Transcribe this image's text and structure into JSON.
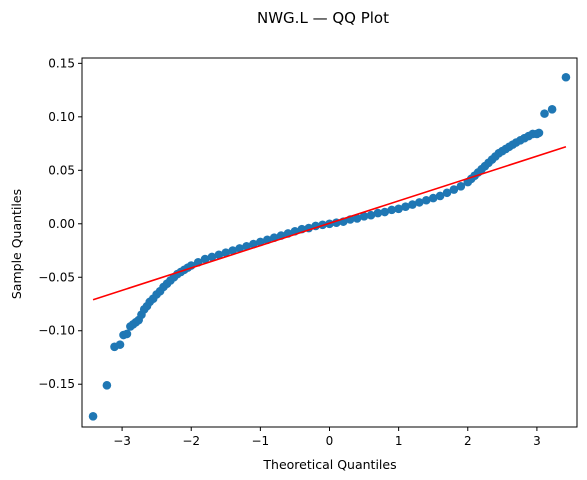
{
  "chart_data": {
    "type": "scatter",
    "title": "NWG.L — QQ Plot",
    "xlabel": "Theoretical Quantiles",
    "ylabel": "Sample Quantiles",
    "xlim": [
      -3.58,
      3.58
    ],
    "ylim": [
      -0.19,
      0.155
    ],
    "x_ticks": [
      -3,
      -2,
      -1,
      0,
      1,
      2,
      3
    ],
    "x_tick_labels": [
      "−3",
      "−2",
      "−1",
      "0",
      "1",
      "2",
      "3"
    ],
    "y_ticks": [
      -0.15,
      -0.1,
      -0.05,
      0.0,
      0.05,
      0.1,
      0.15
    ],
    "y_tick_labels": [
      "−0.15",
      "−0.10",
      "−0.05",
      "0.00",
      "0.05",
      "0.10",
      "0.15"
    ],
    "grid": false,
    "legend": "none",
    "colors": {
      "points": "#1f77b4",
      "reference_line": "#ff0000"
    },
    "reference_line": {
      "x": [
        -3.42,
        3.42
      ],
      "y": [
        -0.071,
        0.072
      ]
    },
    "series": [
      {
        "kind": "points",
        "x": [
          -3.42,
          -3.22,
          -3.11,
          -3.03,
          -2.98,
          -2.93,
          -2.88,
          -2.84,
          -2.8,
          -2.76,
          -2.72,
          -2.68,
          -2.64,
          -2.6,
          -2.55,
          -2.5,
          -2.45,
          -2.4,
          -2.35,
          -2.3,
          -2.25,
          -2.2,
          -2.15,
          -2.1,
          -2.05,
          -2.0,
          -1.9,
          -1.8,
          -1.7,
          -1.6,
          -1.5,
          -1.4,
          -1.3,
          -1.2,
          -1.1,
          -1.0,
          -0.9,
          -0.8,
          -0.7,
          -0.6,
          -0.5,
          -0.4,
          -0.3,
          -0.2,
          -0.1,
          0.0,
          0.1,
          0.2,
          0.3,
          0.4,
          0.5,
          0.6,
          0.7,
          0.8,
          0.9,
          1.0,
          1.1,
          1.2,
          1.3,
          1.4,
          1.5,
          1.6,
          1.7,
          1.8,
          1.9,
          2.0,
          2.05,
          2.1,
          2.15,
          2.2,
          2.25,
          2.3,
          2.35,
          2.4,
          2.45,
          2.5,
          2.55,
          2.6,
          2.65,
          2.7,
          2.76,
          2.82,
          2.88,
          2.94,
          3.0,
          3.03,
          3.11,
          3.22,
          3.42
        ],
        "y": [
          -0.18,
          -0.151,
          -0.115,
          -0.113,
          -0.104,
          -0.103,
          -0.096,
          -0.094,
          -0.092,
          -0.09,
          -0.085,
          -0.08,
          -0.077,
          -0.073,
          -0.07,
          -0.066,
          -0.063,
          -0.059,
          -0.056,
          -0.053,
          -0.05,
          -0.047,
          -0.045,
          -0.043,
          -0.041,
          -0.039,
          -0.036,
          -0.033,
          -0.031,
          -0.029,
          -0.027,
          -0.025,
          -0.023,
          -0.021,
          -0.019,
          -0.017,
          -0.015,
          -0.013,
          -0.011,
          -0.009,
          -0.007,
          -0.005,
          -0.004,
          -0.002,
          -0.001,
          0.0,
          0.001,
          0.002,
          0.004,
          0.005,
          0.007,
          0.008,
          0.01,
          0.011,
          0.013,
          0.014,
          0.016,
          0.018,
          0.02,
          0.022,
          0.024,
          0.026,
          0.029,
          0.032,
          0.035,
          0.039,
          0.042,
          0.045,
          0.048,
          0.051,
          0.054,
          0.057,
          0.06,
          0.063,
          0.066,
          0.068,
          0.07,
          0.072,
          0.074,
          0.076,
          0.078,
          0.08,
          0.082,
          0.084,
          0.084,
          0.085,
          0.103,
          0.107,
          0.137
        ]
      }
    ]
  }
}
